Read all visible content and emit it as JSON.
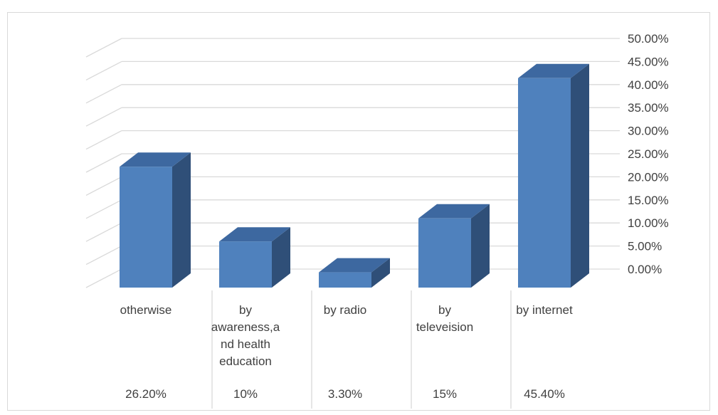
{
  "chart_data": {
    "type": "bar",
    "style": "3d-column with data table",
    "categories": [
      "otherwise",
      "by awareness,and health education",
      "by radio",
      "by televeision",
      "by internet"
    ],
    "category_label_lines": [
      [
        "otherwise"
      ],
      [
        "by",
        "awareness,a",
        "nd health",
        "education"
      ],
      [
        "by radio"
      ],
      [
        "by",
        "televeision"
      ],
      [
        "by internet"
      ]
    ],
    "values": [
      26.2,
      10,
      3.3,
      15,
      45.4
    ],
    "table_values": [
      "26.20%",
      "10%",
      "3.30%",
      "15%",
      "45.40%"
    ],
    "y_ticks": [
      "50.00%",
      "45.00%",
      "40.00%",
      "35.00%",
      "30.00%",
      "25.00%",
      "20.00%",
      "15.00%",
      "10.00%",
      "5.00%",
      "0.00%"
    ],
    "ylim": [
      0,
      50
    ],
    "y_axis_side": "right",
    "grid": true,
    "title": "",
    "xlabel": "",
    "ylabel": "",
    "colors": {
      "bar_front": "#4f81bd",
      "bar_top": "#3d68a0",
      "bar_side": "#2f4f78",
      "grid": "#d9d9d9",
      "text": "#404040"
    }
  }
}
